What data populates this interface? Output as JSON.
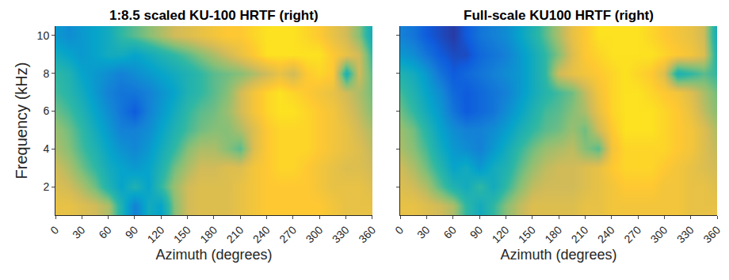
{
  "chart_data": [
    {
      "type": "heatmap",
      "title": "1:8.5 scaled KU-100 HRTF (right)",
      "xlabel": "Azimuth (degrees)",
      "ylabel": "Frequency (kHz)",
      "x": [
        0,
        15,
        30,
        45,
        60,
        75,
        90,
        105,
        120,
        135,
        150,
        165,
        180,
        195,
        210,
        225,
        240,
        255,
        270,
        285,
        300,
        315,
        330,
        345,
        360
      ],
      "y": [
        1,
        2,
        3,
        4,
        5,
        6,
        7,
        8,
        9,
        10
      ],
      "z": [
        [
          4,
          4,
          3,
          2,
          0,
          -8,
          -18,
          -10,
          -12,
          -2,
          2,
          3,
          3,
          3,
          4,
          5,
          6,
          6,
          6,
          6,
          6,
          5,
          4,
          4,
          4
        ],
        [
          3,
          2,
          0,
          -3,
          -8,
          -12,
          -8,
          -12,
          -6,
          -1,
          2,
          3,
          3,
          3,
          4,
          5,
          6,
          6,
          6,
          6,
          5,
          4,
          4,
          4,
          3
        ],
        [
          2,
          0,
          -3,
          -6,
          -10,
          -12,
          -14,
          -12,
          -8,
          -3,
          0,
          2,
          2,
          3,
          3,
          5,
          6,
          7,
          7,
          6,
          5,
          4,
          3,
          3,
          2
        ],
        [
          0,
          -2,
          -5,
          -8,
          -12,
          -15,
          -17,
          -14,
          -10,
          -6,
          -2,
          0,
          0,
          -2,
          -4,
          3,
          6,
          7,
          7,
          7,
          6,
          5,
          4,
          3,
          1
        ],
        [
          -1,
          -3,
          -6,
          -10,
          -14,
          -18,
          -18,
          -16,
          -12,
          -8,
          -5,
          -3,
          -2,
          -2,
          0,
          3,
          6,
          7,
          7,
          7,
          6,
          5,
          4,
          2,
          0
        ],
        [
          -3,
          -5,
          -8,
          -12,
          -16,
          -20,
          -24,
          -18,
          -14,
          -10,
          -6,
          -4,
          -3,
          -1,
          2,
          5,
          7,
          8,
          8,
          7,
          6,
          5,
          3,
          1,
          -2
        ],
        [
          -5,
          -7,
          -10,
          -14,
          -18,
          -20,
          -20,
          -18,
          -15,
          -12,
          -8,
          -6,
          -4,
          -2,
          2,
          5,
          7,
          8,
          7,
          6,
          5,
          4,
          2,
          0,
          -3
        ],
        [
          -6,
          -8,
          -12,
          -14,
          -16,
          -18,
          -16,
          -14,
          -12,
          -10,
          -8,
          -6,
          -4,
          -3,
          -2,
          0,
          2,
          4,
          2,
          6,
          7,
          6,
          -8,
          2,
          -4
        ],
        [
          -10,
          -12,
          -14,
          -12,
          -10,
          -10,
          -12,
          -10,
          -8,
          -6,
          -4,
          -2,
          0,
          2,
          4,
          6,
          8,
          8,
          8,
          8,
          8,
          6,
          4,
          2,
          -6
        ],
        [
          -14,
          -16,
          -14,
          -12,
          -10,
          -6,
          -4,
          -2,
          0,
          2,
          3,
          4,
          5,
          6,
          6,
          7,
          8,
          8,
          8,
          7,
          6,
          4,
          2,
          -2,
          -10
        ]
      ],
      "zlim": [
        -30,
        10
      ],
      "xlim": [
        0,
        360
      ],
      "xticks": [
        0,
        30,
        60,
        90,
        120,
        150,
        180,
        210,
        240,
        270,
        300,
        330,
        360
      ],
      "ylim": [
        0.5,
        10.5
      ],
      "yticks": [
        2,
        4,
        6,
        8,
        10
      ]
    },
    {
      "type": "heatmap",
      "title": "Full-scale KU100 HRTF (right)",
      "xlabel": "Azimuth (degrees)",
      "x": [
        0,
        15,
        30,
        45,
        60,
        75,
        90,
        105,
        120,
        135,
        150,
        165,
        180,
        195,
        210,
        225,
        240,
        255,
        270,
        285,
        300,
        315,
        330,
        345,
        360
      ],
      "y": [
        1,
        2,
        3,
        4,
        5,
        6,
        7,
        8,
        9,
        10
      ],
      "z": [
        [
          4,
          4,
          3,
          2,
          0,
          -6,
          -10,
          -6,
          -2,
          1,
          3,
          3,
          3,
          3,
          4,
          4,
          5,
          5,
          5,
          5,
          5,
          5,
          4,
          4,
          4
        ],
        [
          3,
          2,
          0,
          -4,
          -8,
          -10,
          -6,
          -10,
          -6,
          -2,
          1,
          2,
          2,
          2,
          3,
          4,
          5,
          6,
          6,
          6,
          5,
          5,
          4,
          4,
          3
        ],
        [
          2,
          0,
          -3,
          -7,
          -12,
          -10,
          -14,
          -10,
          -8,
          -4,
          -1,
          1,
          2,
          2,
          3,
          4,
          6,
          7,
          7,
          7,
          6,
          5,
          4,
          3,
          2
        ],
        [
          0,
          -2,
          -5,
          -10,
          -14,
          -16,
          -18,
          -14,
          -10,
          -6,
          -3,
          -1,
          0,
          1,
          -2,
          -4,
          5,
          7,
          7,
          7,
          7,
          6,
          5,
          3,
          1
        ],
        [
          -1,
          -3,
          -7,
          -12,
          -16,
          -18,
          -18,
          -16,
          -13,
          -9,
          -6,
          -4,
          -3,
          -1,
          -3,
          2,
          6,
          8,
          8,
          8,
          7,
          6,
          5,
          3,
          0
        ],
        [
          -3,
          -6,
          -10,
          -14,
          -20,
          -24,
          -22,
          -20,
          -16,
          -12,
          -8,
          -5,
          -4,
          -2,
          0,
          4,
          7,
          8,
          8,
          8,
          7,
          6,
          4,
          1,
          -2
        ],
        [
          -5,
          -8,
          -12,
          -16,
          -22,
          -24,
          -22,
          -20,
          -18,
          -14,
          -10,
          -7,
          -5,
          -3,
          1,
          5,
          7,
          8,
          8,
          7,
          6,
          5,
          3,
          0,
          -3
        ],
        [
          -8,
          -10,
          -14,
          -20,
          -24,
          -22,
          -20,
          -18,
          -16,
          -14,
          -10,
          -6,
          2,
          4,
          5,
          6,
          7,
          8,
          7,
          6,
          3,
          -8,
          -6,
          -4,
          -6
        ],
        [
          -14,
          -16,
          -20,
          -24,
          -26,
          -26,
          -22,
          -20,
          -18,
          -14,
          -10,
          -6,
          -2,
          3,
          6,
          7,
          8,
          8,
          8,
          8,
          7,
          6,
          5,
          3,
          -8
        ],
        [
          -18,
          -20,
          -24,
          -26,
          -28,
          -24,
          -20,
          -18,
          -16,
          -12,
          -8,
          -4,
          0,
          4,
          6,
          8,
          8,
          8,
          8,
          7,
          6,
          5,
          4,
          2,
          -10
        ]
      ],
      "zlim": [
        -30,
        10
      ],
      "xlim": [
        0,
        360
      ],
      "xticks": [
        0,
        30,
        60,
        90,
        120,
        150,
        180,
        210,
        240,
        270,
        300,
        330,
        360
      ],
      "ylim": [
        0.5,
        10.5
      ],
      "yticks": [
        2,
        4,
        6,
        8,
        10
      ],
      "tick_labels": "x"
    }
  ]
}
